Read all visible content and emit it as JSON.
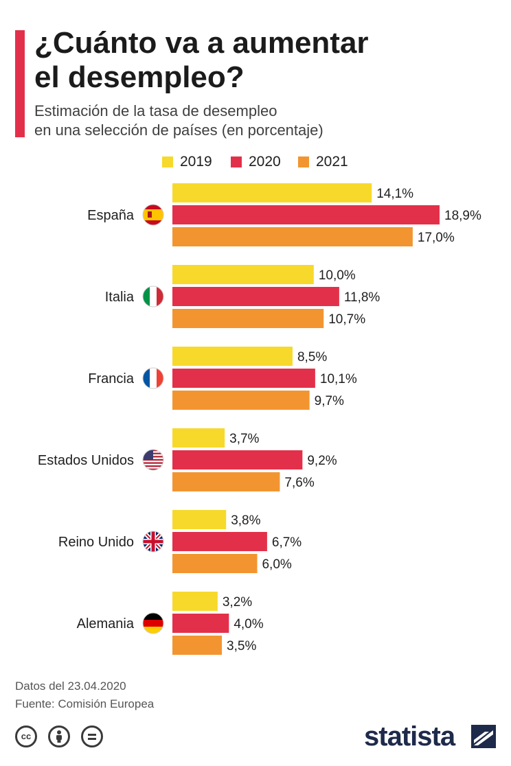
{
  "header": {
    "title_line1": "¿Cuánto va a aumentar",
    "title_line2": "el desempleo?",
    "subtitle_line1": "Estimación de la tasa de desempleo",
    "subtitle_line2": "en una selección de países (en porcentaje)"
  },
  "colors": {
    "accent": "#e3304a",
    "y2019": "#f7d92b",
    "y2020": "#e3304a",
    "y2021": "#f29530"
  },
  "chart_data": {
    "type": "bar",
    "orientation": "horizontal",
    "title": "¿Cuánto va a aumentar el desempleo?",
    "subtitle": "Estimación de la tasa de desempleo en una selección de países (en porcentaje)",
    "categories": [
      "España",
      "Italia",
      "Francia",
      "Estados Unidos",
      "Reino Unido",
      "Alemania"
    ],
    "flags": [
      "spain-flag-icon",
      "italy-flag-icon",
      "france-flag-icon",
      "usa-flag-icon",
      "uk-flag-icon",
      "germany-flag-icon"
    ],
    "series": [
      {
        "name": "2019",
        "color": "#f7d92b",
        "values": [
          14.1,
          10.0,
          8.5,
          3.7,
          3.8,
          3.2
        ],
        "labels": [
          "14,1%",
          "10,0%",
          "8,5%",
          "3,7%",
          "3,8%",
          "3,2%"
        ]
      },
      {
        "name": "2020",
        "color": "#e3304a",
        "values": [
          18.9,
          11.8,
          10.1,
          9.2,
          6.7,
          4.0
        ],
        "labels": [
          "18,9%",
          "11,8%",
          "10,1%",
          "9,2%",
          "6,7%",
          "4,0%"
        ]
      },
      {
        "name": "2021",
        "color": "#f29530",
        "values": [
          17.0,
          10.7,
          9.7,
          7.6,
          6.0,
          3.5
        ],
        "labels": [
          "17,0%",
          "10,7%",
          "9,7%",
          "7,6%",
          "6,0%",
          "3,5%"
        ]
      }
    ],
    "xlim": [
      0,
      18.9
    ],
    "legend": "top-center",
    "grid": false
  },
  "footer": {
    "date": "Datos del 23.04.2020",
    "source": "Fuente: Comisión Europea"
  },
  "license": {
    "cc": "cc"
  },
  "brand": {
    "name": "statista"
  }
}
